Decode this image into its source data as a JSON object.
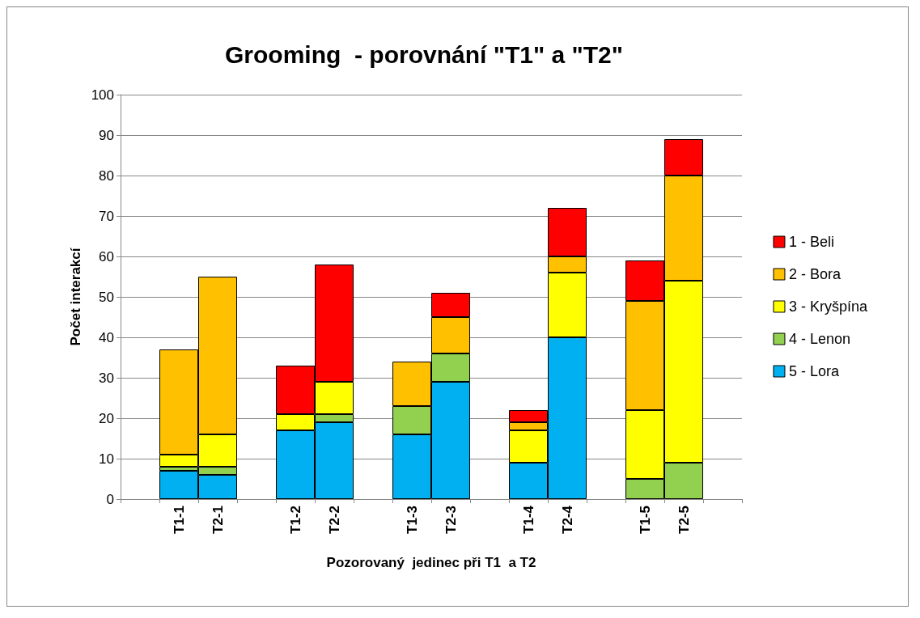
{
  "chart_data": {
    "type": "bar",
    "stacked": true,
    "title": "Grooming  - porovnání \"T1\" a \"T2\"",
    "xlabel": "Pozorovaný  jedinec při T1  a T2",
    "ylabel": "Počet interakcí",
    "categories": [
      null,
      "T1-1",
      "T2-1",
      null,
      "T1-2",
      "T2-2",
      null,
      "T1-3",
      "T2-3",
      null,
      "T1-4",
      "T2-4",
      null,
      "T1-5",
      "T2-5",
      null
    ],
    "series": [
      {
        "name": "5 - Lora",
        "color": "#00b0f0",
        "values": [
          null,
          7,
          6,
          null,
          17,
          19,
          null,
          16,
          29,
          null,
          9,
          40,
          null,
          0,
          0,
          null
        ]
      },
      {
        "name": "4 - Lenon",
        "color": "#92d050",
        "values": [
          null,
          1,
          2,
          null,
          0,
          2,
          null,
          7,
          7,
          null,
          0,
          0,
          null,
          5,
          9,
          null
        ]
      },
      {
        "name": "3 - Kryšpína",
        "color": "#ffff00",
        "values": [
          null,
          3,
          8,
          null,
          4,
          8,
          null,
          0,
          0,
          null,
          8,
          16,
          null,
          17,
          45,
          null
        ]
      },
      {
        "name": "2 - Bora",
        "color": "#ffc000",
        "values": [
          null,
          26,
          39,
          null,
          0,
          0,
          null,
          11,
          9,
          null,
          2,
          4,
          null,
          27,
          26,
          null
        ]
      },
      {
        "name": "1 - Beli",
        "color": "#ff0000",
        "values": [
          null,
          0,
          0,
          null,
          12,
          29,
          null,
          0,
          6,
          null,
          3,
          12,
          null,
          10,
          9,
          null
        ]
      }
    ],
    "ylim": [
      0,
      100
    ],
    "yticks": [
      0,
      10,
      20,
      30,
      40,
      50,
      60,
      70,
      80,
      90,
      100
    ],
    "grid": "y",
    "legend": "right"
  }
}
